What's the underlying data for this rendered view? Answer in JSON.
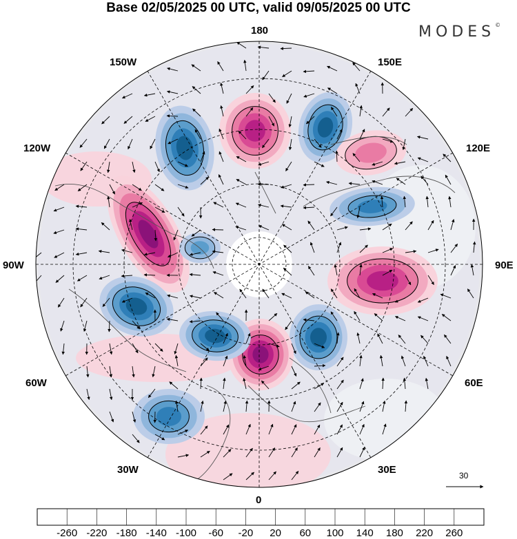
{
  "title": "Base 02/05/2025 00 UTC, valid 09/05/2025 00 UTC",
  "brand": "MODES",
  "brand_mark": "©",
  "longitude_labels": {
    "lon_180": "180",
    "lon_150w": "150W",
    "lon_150e": "150E",
    "lon_120w": "120W",
    "lon_120e": "120E",
    "lon_90w": "90W",
    "lon_90e": "90E",
    "lon_60w": "60W",
    "lon_60e": "60E",
    "lon_30w": "30W",
    "lon_30e": "30E",
    "lon_0": "0"
  },
  "reference_vector": {
    "label": "30"
  },
  "colorbar": {
    "colors": [
      "#0b3c5d",
      "#145f8f",
      "#2f7fb8",
      "#5b9dcc",
      "#8fb6dc",
      "#bccde8",
      "#e2e2f0",
      "#ffffff",
      "#f9d3dc",
      "#f2a9c0",
      "#e97ba4",
      "#d94a94",
      "#b82085",
      "#8b1279",
      "#5a0a6c"
    ],
    "tick_labels": [
      "-260",
      "-220",
      "-180",
      "-140",
      "-100",
      "-60",
      "-20",
      "20",
      "60",
      "100",
      "140",
      "180",
      "220",
      "260"
    ]
  },
  "field_anomalies": [
    {
      "name": "canada-west-high",
      "sign": "positive",
      "strength": 0.95
    },
    {
      "name": "aleutian-east-low",
      "sign": "negative",
      "strength": 0.9
    },
    {
      "name": "north-pacific-high",
      "sign": "positive",
      "strength": 0.9
    },
    {
      "name": "kamchatka-low",
      "sign": "negative",
      "strength": 0.8
    },
    {
      "name": "east-siberia-high",
      "sign": "positive",
      "strength": 0.5
    },
    {
      "name": "central-siberia-low",
      "sign": "negative",
      "strength": 0.6
    },
    {
      "name": "ural-high",
      "sign": "positive",
      "strength": 0.8
    },
    {
      "name": "eastern-europe-low",
      "sign": "negative",
      "strength": 0.85
    },
    {
      "name": "scandinavia-high",
      "sign": "positive",
      "strength": 1.0
    },
    {
      "name": "greenland-low",
      "sign": "negative",
      "strength": 0.8
    },
    {
      "name": "labrador-low",
      "sign": "negative",
      "strength": 0.85
    },
    {
      "name": "mid-atlantic-low",
      "sign": "negative",
      "strength": 0.7
    },
    {
      "name": "canadian-arctic-low",
      "sign": "negative",
      "strength": 0.45
    }
  ]
}
